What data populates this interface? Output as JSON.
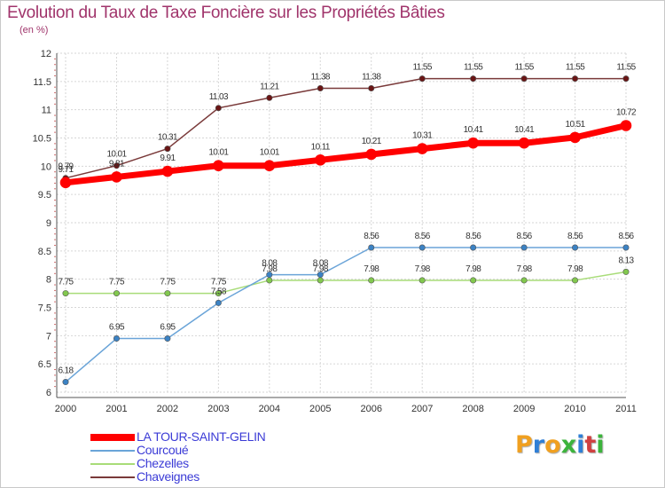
{
  "title": "Evolution du Taux de Taxe Foncière sur les Propriétés Bâties",
  "subtitle": "(en %)",
  "logo": {
    "letters": [
      {
        "ch": "P",
        "color": "#f0a020"
      },
      {
        "ch": "r",
        "color": "#2f7fd6"
      },
      {
        "ch": "o",
        "color": "#f0a020"
      },
      {
        "ch": "x",
        "color": "#3cb33c"
      },
      {
        "ch": "i",
        "color": "#2f7fd6"
      },
      {
        "ch": "t",
        "color": "#d04040"
      },
      {
        "ch": "i",
        "color": "#3cb33c"
      }
    ]
  },
  "chart_data": {
    "type": "line",
    "x": [
      "2000",
      "2001",
      "2002",
      "2003",
      "2004",
      "2005",
      "2006",
      "2007",
      "2008",
      "2009",
      "2010",
      "2011"
    ],
    "ylim": [
      6,
      12
    ],
    "yticks": [
      "6",
      "6.5",
      "7",
      "7.5",
      "8",
      "8.5",
      "9",
      "9.5",
      "10",
      "10.5",
      "11",
      "11.5",
      "12"
    ],
    "grid": true,
    "legend_position": "bottom-left",
    "series": [
      {
        "name": "LA TOUR-SAINT-GELIN",
        "color": "#ff0000",
        "marker_color": "#ff0000",
        "width": 7,
        "values": [
          9.71,
          9.81,
          9.91,
          10.01,
          10.01,
          10.11,
          10.21,
          10.31,
          10.41,
          10.41,
          10.51,
          10.72
        ],
        "labels": [
          "9.71",
          "9.81",
          "9.91",
          "10.01",
          "10.01",
          "10.11",
          "10.21",
          "10.31",
          "10.41",
          "10.41",
          "10.51",
          "10.72"
        ]
      },
      {
        "name": "Courcoué",
        "color": "#6aa4d8",
        "marker_color": "#3b82c4",
        "width": 1.5,
        "values": [
          6.18,
          6.95,
          6.95,
          7.58,
          8.08,
          8.08,
          8.56,
          8.56,
          8.56,
          8.56,
          8.56,
          8.56
        ],
        "labels": [
          "6.18",
          "6.95",
          "6.95",
          "7.58",
          "8.08",
          "8.08",
          "8.56",
          "8.56",
          "8.56",
          "8.56",
          "8.56",
          "8.56"
        ]
      },
      {
        "name": "Chezelles",
        "color": "#a8dc78",
        "marker_color": "#82c84e",
        "width": 1.5,
        "values": [
          7.75,
          7.75,
          7.75,
          7.75,
          7.98,
          7.98,
          7.98,
          7.98,
          7.98,
          7.98,
          7.98,
          8.13
        ],
        "labels": [
          "7.75",
          "7.75",
          "7.75",
          "7.75",
          "7.98",
          "7.98",
          "7.98",
          "7.98",
          "7.98",
          "7.98",
          "7.98",
          "8.13"
        ]
      },
      {
        "name": "Chaveignes",
        "color": "#7a3a3a",
        "marker_color": "#6a1515",
        "width": 1.5,
        "values": [
          9.79,
          10.01,
          10.31,
          11.03,
          11.21,
          11.38,
          11.38,
          11.55,
          11.55,
          11.55,
          11.55,
          11.55
        ],
        "labels": [
          "9.79",
          "10.01",
          "10.31",
          "11.03",
          "11.21",
          "11.38",
          "11.38",
          "11.55",
          "11.55",
          "11.55",
          "11.55",
          "11.55"
        ]
      }
    ]
  }
}
